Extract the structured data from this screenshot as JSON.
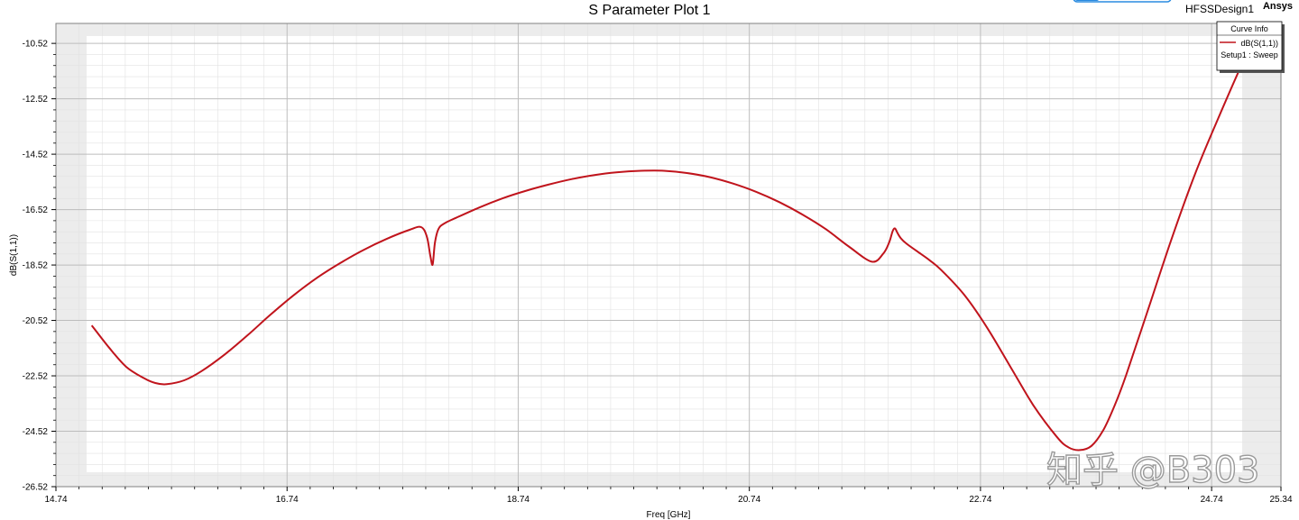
{
  "chart_data": {
    "type": "line",
    "title": "S Parameter Plot 1",
    "design_name": "HFSSDesign1",
    "brand": "Ansys",
    "xlabel": "Freq [GHz]",
    "ylabel": "dB(S(1,1))",
    "xlim": [
      14.74,
      25.34
    ],
    "ylim": [
      -26.52,
      -9.8
    ],
    "x_ticks": [
      "14.74",
      "16.74",
      "18.74",
      "20.74",
      "22.74",
      "24.74",
      "25.34"
    ],
    "y_ticks": [
      "-10.52",
      "-12.52",
      "-14.52",
      "-16.52",
      "-18.52",
      "-20.52",
      "-22.52",
      "-24.52",
      "-26.52"
    ],
    "grid": true,
    "legend": {
      "title": "Curve Info",
      "placement": "top-right",
      "entries": [
        {
          "label": "dB(S(1,1))",
          "sublabel": "Setup1 : Sweep",
          "color": "#c0141c"
        }
      ]
    },
    "series": [
      {
        "name": "dB(S(1,1))",
        "color": "#c0141c",
        "x": [
          15.05,
          15.2,
          15.35,
          15.5,
          15.6,
          15.7,
          15.85,
          16.0,
          16.2,
          16.4,
          16.6,
          16.8,
          17.0,
          17.2,
          17.4,
          17.6,
          17.8,
          17.9,
          17.95,
          17.98,
          18.0,
          18.02,
          18.05,
          18.1,
          18.2,
          18.4,
          18.6,
          18.8,
          19.0,
          19.2,
          19.4,
          19.6,
          19.8,
          20.0,
          20.2,
          20.4,
          20.6,
          20.8,
          21.0,
          21.2,
          21.4,
          21.6,
          21.8,
          21.9,
          21.95,
          21.98,
          22.0,
          22.02,
          22.05,
          22.1,
          22.2,
          22.3,
          22.4,
          22.6,
          22.8,
          23.0,
          23.2,
          23.4,
          23.5,
          23.6,
          23.7,
          23.8,
          23.9,
          24.0,
          24.2,
          24.4,
          24.6,
          24.8,
          25.0,
          25.1
        ],
        "values": [
          -20.7,
          -21.5,
          -22.2,
          -22.6,
          -22.78,
          -22.82,
          -22.68,
          -22.35,
          -21.75,
          -21.05,
          -20.3,
          -19.6,
          -18.98,
          -18.45,
          -17.98,
          -17.58,
          -17.25,
          -17.15,
          -17.5,
          -18.2,
          -18.5,
          -17.7,
          -17.22,
          -17.02,
          -16.82,
          -16.45,
          -16.12,
          -15.85,
          -15.62,
          -15.42,
          -15.27,
          -15.17,
          -15.12,
          -15.12,
          -15.2,
          -15.35,
          -15.58,
          -15.88,
          -16.25,
          -16.7,
          -17.22,
          -17.85,
          -18.4,
          -18.1,
          -17.7,
          -17.3,
          -17.2,
          -17.35,
          -17.55,
          -17.75,
          -18.05,
          -18.35,
          -18.7,
          -19.6,
          -20.8,
          -22.2,
          -23.6,
          -24.72,
          -25.1,
          -25.2,
          -25.05,
          -24.5,
          -23.6,
          -22.5,
          -20.0,
          -17.5,
          -15.2,
          -13.2,
          -11.3,
          -10.5
        ]
      }
    ]
  }
}
